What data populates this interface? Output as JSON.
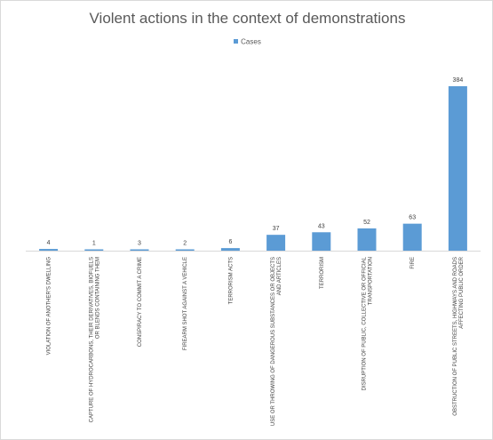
{
  "chart_data": {
    "type": "bar",
    "title": "Violent actions in the context of demonstrations",
    "legend": "top",
    "grid": false,
    "ylim": [
      0,
      384
    ],
    "series": [
      {
        "name": "Cases",
        "values": [
          4,
          1,
          3,
          2,
          6,
          37,
          43,
          52,
          63,
          384
        ]
      }
    ],
    "categories": [
      "VIOLATION OF ANOTHER'S DWELLING",
      "CAPTURE OF HYDROCARBONS, THEIR DERIVATIVES, BIOFUELS OR BLENDS CONTAINING THEM",
      "CONSPIRACY TO COMMIT A CRIME",
      "FIREARM SHOT AGAINST A VEHICLE",
      "TERRORISM ACTS",
      "USE OR THROWING OF DANGEROUS SUBSTANCES OR OBJECTS AND ARTICLES",
      "TERRORISM",
      "DISRUPTION OF PUBLIC, COLLECTIVE OR OFFICIAL TRANSPORTATION",
      "FIRE",
      "OBSTRUCTION OF PUBLIC STREETS, HIGHWAYS AND ROADS AFFECTING PUBLIC ORDER"
    ],
    "category_lines": [
      [
        "VIOLATION OF ANOTHER'S DWELLING"
      ],
      [
        "CAPTURE OF HYDROCARBONS, THEIR DERIVATIVES, BIOFUELS",
        "OR BLENDS CONTAINING THEM"
      ],
      [
        "CONSPIRACY TO COMMIT A CRIME"
      ],
      [
        "FIREARM SHOT AGAINST A VEHICLE"
      ],
      [
        "TERRORISM ACTS"
      ],
      [
        "USE OR THROWING OF DANGEROUS SUBSTANCES OR OBJECTS",
        "AND ARTICLES"
      ],
      [
        "TERRORISM"
      ],
      [
        "DISRUPTION OF PUBLIC, COLLECTIVE OR OFFICIAL",
        "TRANSPORTATION"
      ],
      [
        "FIRE"
      ],
      [
        "OBSTRUCTION OF PUBLIC STREETS, HIGHWAYS AND ROADS",
        "AFFECTING PUBLIC ORDER"
      ]
    ],
    "colors": {
      "bar": "#5b9bd5"
    }
  }
}
